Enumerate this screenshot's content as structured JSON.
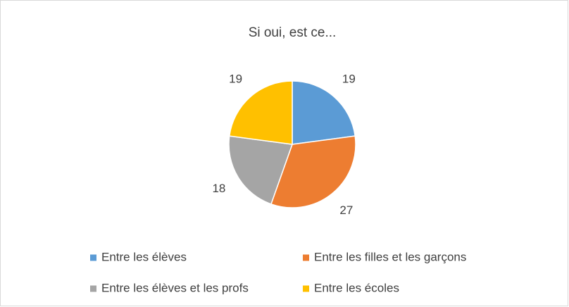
{
  "chart_data": {
    "type": "pie",
    "title": "Si oui, est ce...",
    "categories": [
      "Entre les élèves",
      "Entre les filles et les garçons",
      "Entre les élèves et les profs",
      "Entre les écoles"
    ],
    "values": [
      19,
      27,
      18,
      19
    ],
    "colors": [
      "#5b9bd5",
      "#ed7d31",
      "#a5a5a5",
      "#ffc000"
    ],
    "legend": "bottom"
  }
}
